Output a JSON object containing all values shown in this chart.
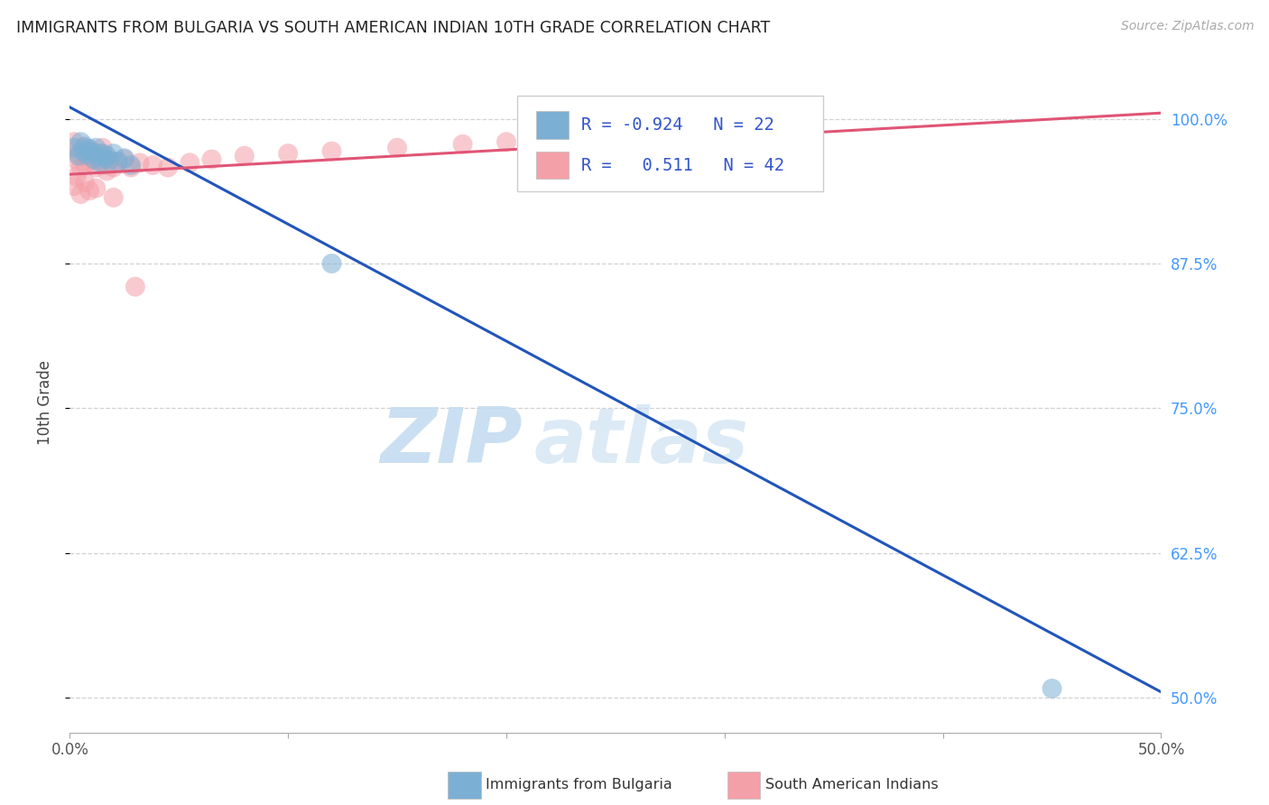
{
  "title": "IMMIGRANTS FROM BULGARIA VS SOUTH AMERICAN INDIAN 10TH GRADE CORRELATION CHART",
  "source": "Source: ZipAtlas.com",
  "ylabel": "10th Grade",
  "xlim": [
    0.0,
    0.5
  ],
  "ylim": [
    0.47,
    1.04
  ],
  "xticks": [
    0.0,
    0.1,
    0.2,
    0.3,
    0.4,
    0.5
  ],
  "xtick_labels": [
    "0.0%",
    "",
    "",
    "",
    "",
    "50.0%"
  ],
  "yticks_right": [
    0.5,
    0.625,
    0.75,
    0.875,
    1.0
  ],
  "ytick_labels_right": [
    "50.0%",
    "62.5%",
    "75.0%",
    "87.5%",
    "100.0%"
  ],
  "blue_color": "#7BAFD4",
  "pink_color": "#F4A0A8",
  "blue_line_color": "#2255BB",
  "pink_line_color": "#E05575",
  "blue_R": -0.924,
  "blue_N": 22,
  "pink_R": 0.511,
  "pink_N": 42,
  "legend_label_blue": "Immigrants from Bulgaria",
  "legend_label_pink": "South American Indians",
  "watermark_zip": "ZIP",
  "watermark_atlas": "atlas",
  "background_color": "#FFFFFF",
  "grid_color": "#CCCCCC",
  "title_color": "#222222",
  "axis_label_color": "#444444",
  "right_tick_color": "#4499FF",
  "blue_scatter_x": [
    0.002,
    0.004,
    0.005,
    0.006,
    0.007,
    0.008,
    0.009,
    0.01,
    0.011,
    0.012,
    0.013,
    0.014,
    0.015,
    0.016,
    0.017,
    0.018,
    0.02,
    0.022,
    0.025,
    0.028,
    0.12,
    0.45
  ],
  "blue_scatter_y": [
    0.975,
    0.968,
    0.98,
    0.972,
    0.976,
    0.969,
    0.974,
    0.971,
    0.965,
    0.975,
    0.968,
    0.962,
    0.97,
    0.966,
    0.968,
    0.964,
    0.97,
    0.963,
    0.966,
    0.96,
    0.875,
    0.508
  ],
  "pink_scatter_x": [
    0.002,
    0.003,
    0.004,
    0.005,
    0.006,
    0.007,
    0.008,
    0.009,
    0.01,
    0.011,
    0.012,
    0.013,
    0.014,
    0.015,
    0.016,
    0.017,
    0.018,
    0.02,
    0.022,
    0.025,
    0.028,
    0.032,
    0.038,
    0.045,
    0.055,
    0.065,
    0.08,
    0.1,
    0.12,
    0.15,
    0.18,
    0.2,
    0.22,
    0.25,
    0.002,
    0.003,
    0.005,
    0.007,
    0.009,
    0.012,
    0.02,
    0.03
  ],
  "pink_scatter_y": [
    0.98,
    0.965,
    0.97,
    0.958,
    0.975,
    0.96,
    0.968,
    0.963,
    0.972,
    0.966,
    0.958,
    0.964,
    0.97,
    0.975,
    0.96,
    0.955,
    0.965,
    0.958,
    0.962,
    0.965,
    0.958,
    0.962,
    0.96,
    0.958,
    0.962,
    0.965,
    0.968,
    0.97,
    0.972,
    0.975,
    0.978,
    0.98,
    0.982,
    0.985,
    0.942,
    0.95,
    0.935,
    0.945,
    0.938,
    0.94,
    0.932,
    0.855
  ]
}
